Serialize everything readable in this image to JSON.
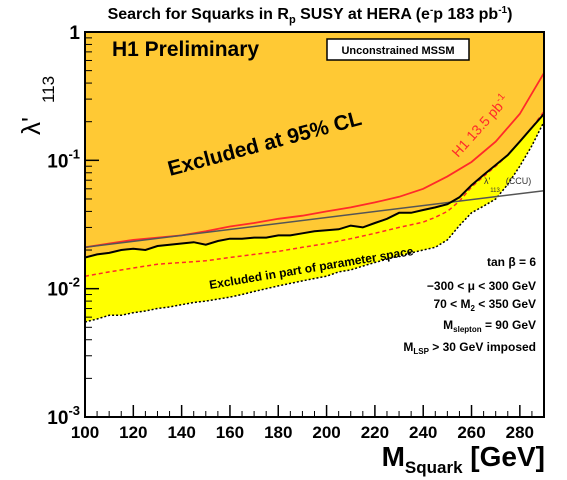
{
  "chart_data": {
    "type": "area",
    "title": {
      "main": "Search for Squarks in R",
      "rp_sub": "p",
      "mid": " SUSY at HERA (e",
      "e_sup": "-",
      "tail": "p 183 pb",
      "lumi_sup": "-1",
      "close": ")"
    },
    "xlabel": {
      "main": "M",
      "sub": "Squark",
      "unit": " [GeV]"
    },
    "ylabel": {
      "main": "λ'",
      "sub": "113"
    },
    "xlim": [
      100,
      290
    ],
    "ylim": [
      0.001,
      1
    ],
    "yscale": "log",
    "x_ticks": [
      100,
      120,
      140,
      160,
      180,
      200,
      220,
      240,
      260,
      280
    ],
    "y_ticks": [
      {
        "value": 1,
        "base": "1",
        "exp": ""
      },
      {
        "value": 0.1,
        "base": "10",
        "exp": "-1"
      },
      {
        "value": 0.01,
        "base": "10",
        "exp": "-2"
      },
      {
        "value": 0.001,
        "base": "10",
        "exp": "-3"
      }
    ],
    "colors": {
      "excluded": "#ffc934",
      "partial": "#ffff00",
      "h1_line": "#ff2a2a",
      "ccu_line": "#555555",
      "boundary": "#000000"
    },
    "series": [
      {
        "key": "black_limit",
        "style": "solid",
        "x": [
          100,
          105,
          110,
          115,
          120,
          125,
          130,
          135,
          140,
          145,
          150,
          155,
          160,
          165,
          170,
          175,
          180,
          185,
          190,
          195,
          200,
          205,
          210,
          215,
          220,
          225,
          230,
          235,
          240,
          245,
          250,
          255,
          260,
          265,
          270,
          275,
          280,
          285,
          290
        ],
        "y": [
          0.0175,
          0.0185,
          0.019,
          0.02,
          0.0205,
          0.02,
          0.0215,
          0.022,
          0.0225,
          0.023,
          0.022,
          0.0235,
          0.0245,
          0.0245,
          0.025,
          0.025,
          0.026,
          0.026,
          0.027,
          0.028,
          0.0285,
          0.029,
          0.031,
          0.03,
          0.0325,
          0.035,
          0.039,
          0.039,
          0.041,
          0.043,
          0.0455,
          0.0515,
          0.064,
          0.077,
          0.092,
          0.11,
          0.14,
          0.18,
          0.23
        ]
      },
      {
        "key": "dashed_red",
        "style": "dashed",
        "x": [
          100,
          110,
          120,
          130,
          140,
          150,
          160,
          170,
          180,
          190,
          200,
          210,
          220,
          230,
          240,
          245,
          250,
          255,
          260,
          265,
          270,
          275,
          280,
          285,
          290
        ],
        "y": [
          0.0125,
          0.0135,
          0.0145,
          0.0155,
          0.016,
          0.0165,
          0.0175,
          0.0185,
          0.0195,
          0.021,
          0.0225,
          0.0245,
          0.027,
          0.03,
          0.033,
          0.036,
          0.04,
          0.048,
          0.062,
          0.075,
          0.09,
          0.11,
          0.14,
          0.18,
          0.24
        ]
      },
      {
        "key": "h1_13_5",
        "name": "H1 13.5 pb",
        "name_sup": "-1",
        "style": "solid",
        "x": [
          100,
          110,
          120,
          130,
          140,
          150,
          160,
          170,
          180,
          190,
          200,
          210,
          220,
          230,
          240,
          250,
          260,
          270,
          280,
          290
        ],
        "y": [
          0.021,
          0.0225,
          0.024,
          0.025,
          0.026,
          0.028,
          0.0305,
          0.0325,
          0.035,
          0.037,
          0.04,
          0.043,
          0.047,
          0.052,
          0.06,
          0.075,
          0.097,
          0.14,
          0.23,
          0.48
        ]
      },
      {
        "key": "ccu",
        "name": "λ'",
        "name_sub": "113",
        "name_tail": "(CCU)",
        "style": "solid",
        "x": [
          100,
          290
        ],
        "y": [
          0.021,
          0.058
        ]
      },
      {
        "key": "partial_lower",
        "style": "solid",
        "x": [
          100,
          105,
          110,
          115,
          120,
          125,
          130,
          135,
          140,
          145,
          150,
          155,
          160,
          165,
          170,
          175,
          180,
          185,
          190,
          195,
          200,
          205,
          210,
          215,
          220,
          225,
          230,
          235,
          240,
          245,
          250,
          255,
          260,
          265,
          270,
          275,
          280,
          285,
          290
        ],
        "y": [
          0.0055,
          0.0058,
          0.0062,
          0.0062,
          0.0065,
          0.0067,
          0.007,
          0.0072,
          0.0075,
          0.0078,
          0.008,
          0.0083,
          0.0086,
          0.009,
          0.0095,
          0.01,
          0.0105,
          0.011,
          0.0115,
          0.012,
          0.0125,
          0.0135,
          0.014,
          0.015,
          0.016,
          0.017,
          0.018,
          0.019,
          0.02,
          0.021,
          0.024,
          0.031,
          0.039,
          0.044,
          0.05,
          0.065,
          0.09,
          0.13,
          0.2
        ]
      }
    ],
    "annotations": {
      "preliminary": "H1 Preliminary",
      "model_box": "Unconstrained MSSM",
      "excluded": "Excluded at 95% CL",
      "excluded_partial": "Excluded in part of parameter space",
      "params": [
        {
          "main": "tan β = 6"
        },
        {
          "main": "−300 < μ  < 300 GeV"
        },
        {
          "pre": "70 < M",
          "sub": "2",
          "post": " < 350 GeV"
        },
        {
          "pre": "M",
          "sub": "slepton",
          "post": " = 90 GeV"
        },
        {
          "pre": "M",
          "sub": "LSP",
          "post": " > 30 GeV imposed"
        }
      ]
    }
  }
}
